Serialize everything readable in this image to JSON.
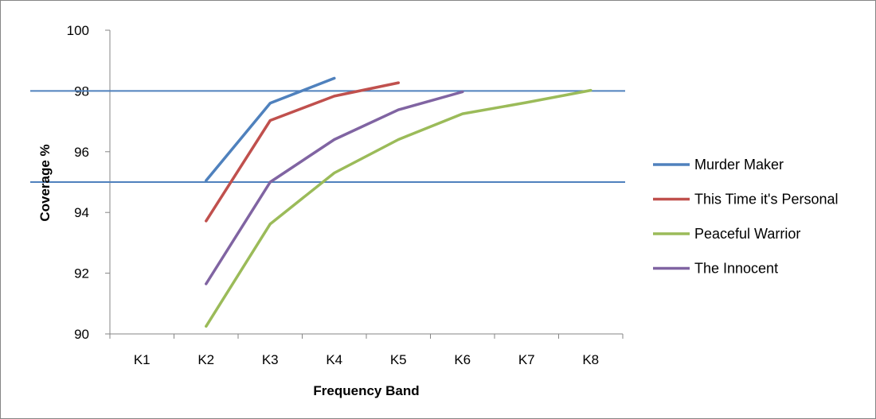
{
  "chart_data": {
    "type": "line",
    "categories": [
      "K1",
      "K2",
      "K3",
      "K4",
      "K5",
      "K6",
      "K7",
      "K8"
    ],
    "xlabel": "Frequency Band",
    "ylabel": "Coverage %",
    "ylim": [
      90,
      100
    ],
    "yticks": [
      90,
      92,
      94,
      96,
      98,
      100
    ],
    "legend_position": "right",
    "grid": false,
    "series": [
      {
        "name": "Murder Maker",
        "color": "#4f81bd",
        "values": [
          null,
          95.05,
          97.6,
          98.42,
          null,
          null,
          null,
          null
        ]
      },
      {
        "name": "This Time it's Personal",
        "color": "#c0504d",
        "values": [
          null,
          93.72,
          97.03,
          97.83,
          98.27,
          null,
          null,
          null
        ]
      },
      {
        "name": "Peaceful Warrior",
        "color": "#9bbb59",
        "values": [
          null,
          90.25,
          93.62,
          95.3,
          96.4,
          97.25,
          97.62,
          98.02
        ]
      },
      {
        "name": "The Innocent",
        "color": "#8064a2",
        "values": [
          null,
          91.65,
          95.0,
          96.4,
          97.38,
          97.97,
          null,
          null
        ]
      }
    ],
    "reference_lines": [
      {
        "value": 98,
        "color": "#4f81bd"
      },
      {
        "value": 95,
        "color": "#4f81bd"
      }
    ]
  }
}
